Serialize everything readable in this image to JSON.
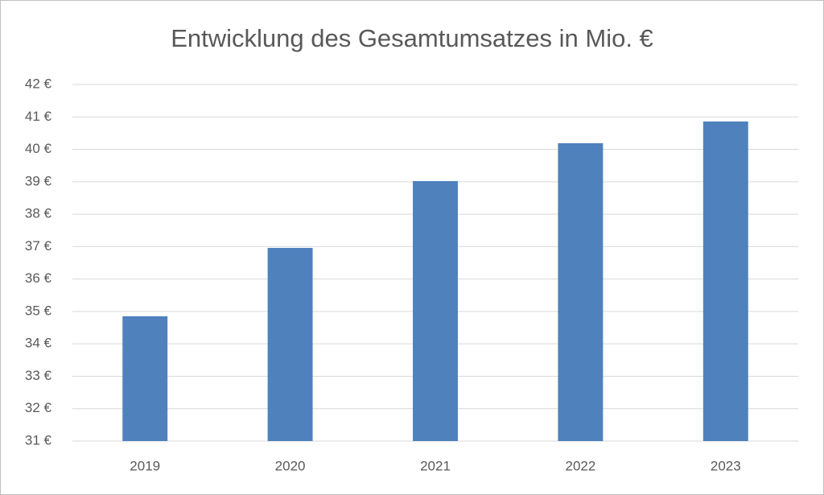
{
  "chart_data": {
    "type": "bar",
    "title": "Entwicklung des Gesamtumsatzes in Mio. €",
    "categories": [
      "2019",
      "2020",
      "2021",
      "2022",
      "2023"
    ],
    "values": [
      34.85,
      36.96,
      39.02,
      40.19,
      40.86
    ],
    "color": "#4f81bd",
    "ylim": [
      31,
      42
    ],
    "yticks": [
      {
        "value": 31,
        "label": "31 €"
      },
      {
        "value": 32,
        "label": "32 €"
      },
      {
        "value": 33,
        "label": "33 €"
      },
      {
        "value": 34,
        "label": "34 €"
      },
      {
        "value": 35,
        "label": "35 €"
      },
      {
        "value": 36,
        "label": "36 €"
      },
      {
        "value": 37,
        "label": "37 €"
      },
      {
        "value": 38,
        "label": "38 €"
      },
      {
        "value": 39,
        "label": "39 €"
      },
      {
        "value": 40,
        "label": "40 €"
      },
      {
        "value": 41,
        "label": "41 €"
      },
      {
        "value": 42,
        "label": "42 €"
      }
    ],
    "grid": true
  }
}
